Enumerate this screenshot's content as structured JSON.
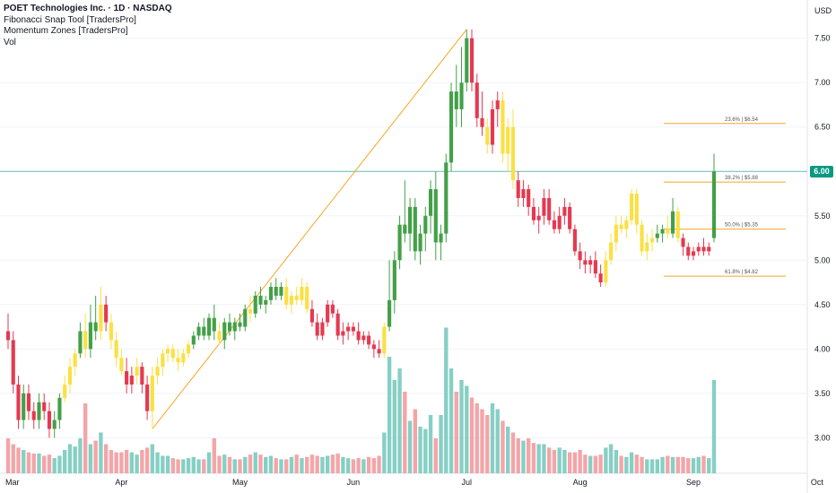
{
  "legend": {
    "title": "POET Technologies Inc. · 1D · NASDAQ",
    "indicators": [
      "Fibonacci Snap Tool [TradersPro]",
      "Momentum Zones [TradersPro]",
      "Vol"
    ]
  },
  "currency": "USD",
  "last_price_label": "6.00",
  "colors": {
    "up": "#43a047",
    "down": "#e53950",
    "neutral": "#fbe044",
    "vol_up": "#86cfc4",
    "vol_down": "#f3a5a8",
    "fib": "#f5a623",
    "price_line": "#0b9b8a"
  },
  "chart_data": {
    "type": "candlestick",
    "title": "POET Technologies Inc. · 1D · NASDAQ",
    "yaxis_ticks": [
      "3.00",
      "3.50",
      "4.00",
      "4.50",
      "5.00",
      "5.50",
      "6.00",
      "6.50",
      "7.00",
      "7.50"
    ],
    "ylim": [
      2.6,
      7.85
    ],
    "xaxis_ticks": [
      "Mar",
      "Apr",
      "May",
      "Jun",
      "Jul",
      "Aug",
      "Sep",
      "Oct"
    ],
    "last_price": 6.0,
    "fib_levels": [
      {
        "ratio": "23.6%",
        "label": "23.6% | $6.54",
        "price": 6.54
      },
      {
        "ratio": "38.2%",
        "label": "38.2% | $5.88",
        "price": 5.88
      },
      {
        "ratio": "50.0%",
        "label": "50.0% | $5.35",
        "price": 5.35
      },
      {
        "ratio": "61.8%",
        "label": "61.8% | $4.82",
        "price": 4.82
      }
    ],
    "swing": {
      "from_index": 28,
      "from_price": 3.1,
      "to_index": 89,
      "to_price": 7.6
    },
    "candles": [
      [
        4.2,
        4.4,
        4.0,
        4.1,
        "d",
        0.3
      ],
      [
        4.1,
        4.2,
        3.5,
        3.6,
        "d",
        0.25
      ],
      [
        3.6,
        3.7,
        3.1,
        3.2,
        "d",
        0.22
      ],
      [
        3.2,
        3.6,
        3.1,
        3.5,
        "u",
        0.2
      ],
      [
        3.5,
        3.6,
        3.2,
        3.3,
        "d",
        0.18
      ],
      [
        3.3,
        3.4,
        3.1,
        3.2,
        "d",
        0.17
      ],
      [
        3.2,
        3.5,
        3.1,
        3.4,
        "u",
        0.17
      ],
      [
        3.4,
        3.5,
        3.2,
        3.3,
        "d",
        0.15
      ],
      [
        3.3,
        3.4,
        3.0,
        3.1,
        "d",
        0.16
      ],
      [
        3.1,
        3.3,
        3.0,
        3.2,
        "u",
        0.13
      ],
      [
        3.2,
        3.5,
        3.1,
        3.45,
        "u",
        0.15
      ],
      [
        3.45,
        3.7,
        3.4,
        3.6,
        "n",
        0.2
      ],
      [
        3.6,
        3.9,
        3.5,
        3.8,
        "n",
        0.25
      ],
      [
        3.8,
        4.0,
        3.7,
        3.95,
        "n",
        0.23
      ],
      [
        3.95,
        4.3,
        3.9,
        4.2,
        "u",
        0.3
      ],
      [
        4.2,
        4.4,
        3.9,
        4.0,
        "n",
        0.6
      ],
      [
        4.0,
        4.5,
        3.9,
        4.3,
        "u",
        0.25
      ],
      [
        4.3,
        4.6,
        4.1,
        4.2,
        "u",
        0.28
      ],
      [
        4.2,
        4.7,
        4.1,
        4.5,
        "n",
        0.35
      ],
      [
        4.5,
        4.6,
        4.2,
        4.3,
        "d",
        0.25
      ],
      [
        4.3,
        4.4,
        4.0,
        4.1,
        "n",
        0.2
      ],
      [
        4.1,
        4.2,
        3.8,
        3.9,
        "n",
        0.18
      ],
      [
        3.9,
        4.0,
        3.7,
        3.75,
        "n",
        0.18
      ],
      [
        3.75,
        3.9,
        3.5,
        3.6,
        "d",
        0.2
      ],
      [
        3.6,
        3.8,
        3.5,
        3.7,
        "d",
        0.18
      ],
      [
        3.7,
        3.9,
        3.6,
        3.8,
        "n",
        0.16
      ],
      [
        3.8,
        3.85,
        3.5,
        3.6,
        "d",
        0.2
      ],
      [
        3.6,
        3.7,
        3.2,
        3.3,
        "d",
        0.22
      ],
      [
        3.3,
        3.8,
        3.1,
        3.7,
        "n",
        0.25
      ],
      [
        3.7,
        3.9,
        3.6,
        3.8,
        "n",
        0.18
      ],
      [
        3.8,
        4.0,
        3.7,
        3.95,
        "n",
        0.15
      ],
      [
        3.95,
        4.05,
        3.85,
        4.0,
        "n",
        0.15
      ],
      [
        4.0,
        4.05,
        3.85,
        3.9,
        "n",
        0.13
      ],
      [
        3.9,
        4.0,
        3.75,
        3.85,
        "n",
        0.12
      ],
      [
        3.85,
        4.0,
        3.8,
        3.95,
        "n",
        0.12
      ],
      [
        3.95,
        4.1,
        3.9,
        4.05,
        "n",
        0.13
      ],
      [
        4.05,
        4.2,
        4.0,
        4.15,
        "u",
        0.14
      ],
      [
        4.15,
        4.3,
        4.1,
        4.25,
        "u",
        0.12
      ],
      [
        4.25,
        4.35,
        4.1,
        4.15,
        "u",
        0.12
      ],
      [
        4.15,
        4.4,
        4.1,
        4.35,
        "u",
        0.18
      ],
      [
        4.35,
        4.5,
        4.1,
        4.2,
        "u",
        0.3
      ],
      [
        4.2,
        4.3,
        4.05,
        4.1,
        "n",
        0.15
      ],
      [
        4.1,
        4.35,
        4.0,
        4.3,
        "u",
        0.16
      ],
      [
        4.3,
        4.4,
        4.15,
        4.2,
        "u",
        0.14
      ],
      [
        4.2,
        4.35,
        4.1,
        4.3,
        "u",
        0.12
      ],
      [
        4.3,
        4.4,
        4.2,
        4.25,
        "u",
        0.12
      ],
      [
        4.25,
        4.5,
        4.2,
        4.45,
        "u",
        0.14
      ],
      [
        4.45,
        4.6,
        4.3,
        4.4,
        "n",
        0.16
      ],
      [
        4.4,
        4.65,
        4.35,
        4.6,
        "u",
        0.18
      ],
      [
        4.6,
        4.7,
        4.45,
        4.5,
        "u",
        0.16
      ],
      [
        4.5,
        4.6,
        4.4,
        4.55,
        "u",
        0.14
      ],
      [
        4.55,
        4.75,
        4.5,
        4.7,
        "u",
        0.15
      ],
      [
        4.7,
        4.8,
        4.55,
        4.6,
        "u",
        0.13
      ],
      [
        4.6,
        4.75,
        4.55,
        4.7,
        "u",
        0.12
      ],
      [
        4.7,
        4.8,
        4.45,
        4.5,
        "n",
        0.12
      ],
      [
        4.5,
        4.65,
        4.4,
        4.6,
        "n",
        0.14
      ],
      [
        4.6,
        4.7,
        4.5,
        4.55,
        "n",
        0.16
      ],
      [
        4.55,
        4.8,
        4.5,
        4.7,
        "n",
        0.13
      ],
      [
        4.7,
        4.75,
        4.4,
        4.45,
        "n",
        0.14
      ],
      [
        4.45,
        4.55,
        4.25,
        4.3,
        "d",
        0.16
      ],
      [
        4.3,
        4.4,
        4.1,
        4.15,
        "d",
        0.15
      ],
      [
        4.15,
        4.35,
        4.1,
        4.3,
        "d",
        0.14
      ],
      [
        4.3,
        4.55,
        4.25,
        4.5,
        "d",
        0.15
      ],
      [
        4.5,
        4.55,
        4.35,
        4.4,
        "d",
        0.16
      ],
      [
        4.4,
        4.45,
        4.1,
        4.15,
        "d",
        0.17
      ],
      [
        4.15,
        4.3,
        4.05,
        4.2,
        "d",
        0.14
      ],
      [
        4.2,
        4.3,
        4.1,
        4.25,
        "d",
        0.13
      ],
      [
        4.25,
        4.3,
        4.15,
        4.2,
        "d",
        0.12
      ],
      [
        4.2,
        4.3,
        4.05,
        4.1,
        "d",
        0.13
      ],
      [
        4.1,
        4.2,
        4.05,
        4.15,
        "d",
        0.12
      ],
      [
        4.15,
        4.2,
        4.0,
        4.05,
        "d",
        0.14
      ],
      [
        4.05,
        4.1,
        3.9,
        4.0,
        "d",
        0.13
      ],
      [
        4.0,
        4.1,
        3.9,
        3.95,
        "d",
        0.15
      ],
      [
        3.95,
        4.3,
        3.9,
        4.25,
        "n",
        0.35
      ],
      [
        4.25,
        5.0,
        4.2,
        4.55,
        "u",
        1.0
      ],
      [
        4.55,
        5.1,
        4.4,
        5.0,
        "u",
        0.8
      ],
      [
        5.0,
        5.5,
        4.9,
        5.4,
        "u",
        0.9
      ],
      [
        5.4,
        5.9,
        5.2,
        5.3,
        "u",
        0.7
      ],
      [
        5.3,
        5.7,
        5.1,
        5.6,
        "u",
        0.45
      ],
      [
        5.6,
        5.7,
        5.0,
        5.1,
        "u",
        0.55
      ],
      [
        5.1,
        5.4,
        4.95,
        5.3,
        "u",
        0.4
      ],
      [
        5.3,
        5.6,
        5.1,
        5.5,
        "u",
        0.38
      ],
      [
        5.5,
        5.9,
        5.3,
        5.8,
        "u",
        0.5
      ],
      [
        5.8,
        6.0,
        5.0,
        5.2,
        "u",
        0.3
      ],
      [
        5.2,
        5.4,
        5.0,
        5.3,
        "u",
        0.5
      ],
      [
        5.3,
        6.2,
        5.2,
        6.1,
        "u",
        1.25
      ],
      [
        6.1,
        7.0,
        6.0,
        6.9,
        "u",
        0.9
      ],
      [
        6.9,
        7.2,
        6.5,
        6.7,
        "u",
        0.7
      ],
      [
        6.7,
        7.4,
        6.5,
        7.0,
        "u",
        0.8
      ],
      [
        7.0,
        7.6,
        6.9,
        7.5,
        "u",
        0.75
      ],
      [
        7.5,
        7.6,
        6.9,
        7.0,
        "d",
        0.65
      ],
      [
        7.0,
        7.1,
        6.5,
        6.6,
        "d",
        0.6
      ],
      [
        6.6,
        6.9,
        6.4,
        6.5,
        "d",
        0.55
      ],
      [
        6.5,
        6.6,
        6.2,
        6.3,
        "n",
        0.5
      ],
      [
        6.3,
        6.8,
        6.2,
        6.7,
        "d",
        0.6
      ],
      [
        6.7,
        6.9,
        6.5,
        6.8,
        "d",
        0.55
      ],
      [
        6.8,
        6.9,
        6.1,
        6.2,
        "n",
        0.45
      ],
      [
        6.2,
        6.6,
        6.0,
        6.5,
        "n",
        0.4
      ],
      [
        6.5,
        6.7,
        5.8,
        5.9,
        "n",
        0.35
      ],
      [
        5.9,
        6.0,
        5.6,
        5.7,
        "d",
        0.3
      ],
      [
        5.7,
        5.9,
        5.6,
        5.8,
        "d",
        0.28
      ],
      [
        5.8,
        5.85,
        5.5,
        5.6,
        "d",
        0.3
      ],
      [
        5.6,
        5.7,
        5.4,
        5.45,
        "d",
        0.26
      ],
      [
        5.45,
        5.6,
        5.3,
        5.5,
        "d",
        0.25
      ],
      [
        5.5,
        5.8,
        5.4,
        5.7,
        "d",
        0.25
      ],
      [
        5.7,
        5.8,
        5.4,
        5.45,
        "d",
        0.22
      ],
      [
        5.45,
        5.55,
        5.3,
        5.35,
        "d",
        0.2
      ],
      [
        5.35,
        5.6,
        5.3,
        5.5,
        "d",
        0.22
      ],
      [
        5.5,
        5.7,
        5.4,
        5.6,
        "d",
        0.2
      ],
      [
        5.6,
        5.65,
        5.3,
        5.35,
        "d",
        0.18
      ],
      [
        5.35,
        5.4,
        5.05,
        5.1,
        "d",
        0.18
      ],
      [
        5.1,
        5.2,
        4.9,
        5.0,
        "d",
        0.2
      ],
      [
        5.0,
        5.1,
        4.85,
        4.95,
        "d",
        0.16
      ],
      [
        4.95,
        5.05,
        4.85,
        5.0,
        "d",
        0.15
      ],
      [
        5.0,
        5.1,
        4.8,
        4.85,
        "d",
        0.15
      ],
      [
        4.85,
        4.95,
        4.7,
        4.75,
        "d",
        0.16
      ],
      [
        4.75,
        5.1,
        4.7,
        5.0,
        "n",
        0.22
      ],
      [
        5.0,
        5.3,
        4.95,
        5.2,
        "n",
        0.25
      ],
      [
        5.2,
        5.5,
        5.1,
        5.4,
        "n",
        0.2
      ],
      [
        5.4,
        5.5,
        5.3,
        5.35,
        "n",
        0.15
      ],
      [
        5.35,
        5.5,
        5.25,
        5.45,
        "n",
        0.14
      ],
      [
        5.45,
        5.8,
        5.4,
        5.75,
        "n",
        0.18
      ],
      [
        5.75,
        5.8,
        5.3,
        5.4,
        "n",
        0.16
      ],
      [
        5.4,
        5.45,
        5.05,
        5.1,
        "n",
        0.14
      ],
      [
        5.1,
        5.3,
        5.0,
        5.2,
        "n",
        0.12
      ],
      [
        5.2,
        5.35,
        5.1,
        5.25,
        "n",
        0.12
      ],
      [
        5.25,
        5.4,
        5.2,
        5.3,
        "u",
        0.12
      ],
      [
        5.3,
        5.4,
        5.2,
        5.35,
        "u",
        0.14
      ],
      [
        5.35,
        5.5,
        5.25,
        5.3,
        "n",
        0.15
      ],
      [
        5.3,
        5.7,
        5.25,
        5.55,
        "u",
        0.14
      ],
      [
        5.55,
        5.6,
        5.2,
        5.25,
        "n",
        0.14
      ],
      [
        5.25,
        5.3,
        5.05,
        5.15,
        "d",
        0.14
      ],
      [
        5.15,
        5.2,
        5.0,
        5.05,
        "d",
        0.13
      ],
      [
        5.05,
        5.15,
        5.0,
        5.1,
        "d",
        0.13
      ],
      [
        5.1,
        5.2,
        5.05,
        5.15,
        "d",
        0.14
      ],
      [
        5.15,
        5.25,
        5.05,
        5.1,
        "d",
        0.15
      ],
      [
        5.1,
        5.2,
        5.05,
        5.15,
        "d",
        0.13
      ],
      [
        5.25,
        6.2,
        5.2,
        6.0,
        "u",
        0.8
      ]
    ]
  }
}
